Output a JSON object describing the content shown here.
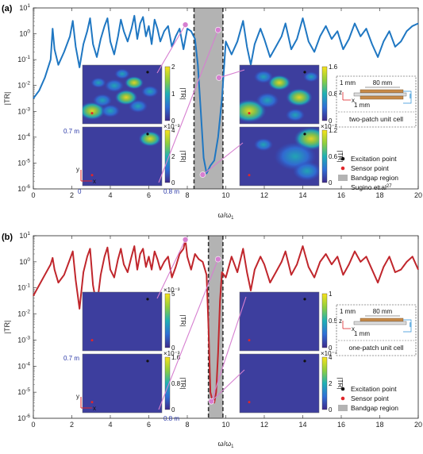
{
  "chart_data": [
    {
      "type": "line",
      "panel_label": "(a)",
      "xlabel": "ω/ω",
      "xlabel_sub": "1",
      "ylabel": "|TR|",
      "xlim": [
        0,
        20
      ],
      "ylim_log10": [
        -6,
        1
      ],
      "y_scale": "log",
      "x_ticks": [
        "0",
        "2",
        "4",
        "6",
        "8",
        "10",
        "12",
        "14",
        "16",
        "18",
        "20"
      ],
      "y_tick_exponents": [
        "1",
        "0",
        "-1",
        "-2",
        "-3",
        "-4",
        "-5",
        "-6"
      ],
      "series": [
        {
          "color": "#1f77c2",
          "x": [
            0,
            0.3,
            0.6,
            0.9,
            1.0,
            1.1,
            1.3,
            1.6,
            1.9,
            2.05,
            2.2,
            2.4,
            2.6,
            2.8,
            2.95,
            3.1,
            3.3,
            3.5,
            3.7,
            3.85,
            4.0,
            4.2,
            4.4,
            4.55,
            4.7,
            4.9,
            5.1,
            5.25,
            5.4,
            5.55,
            5.7,
            5.85,
            6.0,
            6.15,
            6.3,
            6.45,
            6.6,
            6.8,
            7.0,
            7.2,
            7.4,
            7.6,
            7.8,
            8.0,
            8.2,
            8.4,
            8.55,
            8.7,
            8.85,
            9.0,
            9.2,
            9.4,
            9.6,
            9.8,
            10.0,
            10.3,
            10.6,
            10.9,
            11.1,
            11.3,
            11.5,
            11.8,
            12.0,
            12.3,
            12.6,
            12.9,
            13.1,
            13.4,
            13.7,
            14.0,
            14.3,
            14.6,
            14.9,
            15.2,
            15.5,
            15.8,
            16.1,
            16.4,
            16.7,
            17.0,
            17.3,
            17.6,
            17.9,
            18.2,
            18.5,
            18.8,
            19.1,
            19.4,
            19.7,
            20.0
          ],
          "y_log10": [
            -2.5,
            -2.2,
            -1.7,
            -1.0,
            0.2,
            -0.6,
            -1.2,
            -0.7,
            -0.1,
            0.5,
            -0.5,
            -1.3,
            -0.4,
            0.1,
            0.6,
            -0.4,
            -0.9,
            -0.2,
            0.3,
            0.6,
            -0.3,
            -0.8,
            -0.1,
            0.55,
            0.1,
            -0.3,
            0.2,
            0.7,
            -0.2,
            0.4,
            0.65,
            -0.1,
            0.3,
            -0.4,
            0.55,
            0.2,
            -0.3,
            0.1,
            0.3,
            -0.5,
            -0.1,
            0.2,
            -0.6,
            0.2,
            0.1,
            -0.2,
            -1.2,
            -3.0,
            -4.8,
            -5.4,
            -5.1,
            -4.9,
            -4.0,
            -2.5,
            -0.3,
            -0.8,
            -0.3,
            0.5,
            -0.5,
            -1.2,
            -0.4,
            0.2,
            -0.2,
            -0.9,
            -0.5,
            -0.1,
            0.4,
            -0.6,
            -0.2,
            0.6,
            -0.3,
            -0.7,
            -0.1,
            0.3,
            -0.2,
            0.1,
            -0.6,
            -0.2,
            0.4,
            -0.1,
            0.2,
            -0.4,
            -0.9,
            -0.3,
            0.1,
            -0.5,
            -0.3,
            0.1,
            0.3,
            0.4
          ]
        }
      ],
      "bandgap": [
        8.35,
        9.85
      ],
      "dashed_lines": [
        8.35,
        9.85
      ],
      "markers": [
        {
          "x": 7.9,
          "y_log10": 0.35
        },
        {
          "x": 9.6,
          "y_log10": 0.15
        },
        {
          "x": 9.65,
          "y_log10": -1.7
        },
        {
          "x": 8.8,
          "y_log10": -5.45
        }
      ],
      "insets": {
        "left_top_cbar": [
          "2",
          "1",
          "0"
        ],
        "left_bottom_cbar": [
          "4",
          "2",
          "0"
        ],
        "left_bottom_cbar_exp": "×10⁻³",
        "right_top_cbar": [
          "1.6",
          "0.8",
          "0"
        ],
        "right_bottom_cbar": [
          "1.2",
          "0.6",
          "0"
        ],
        "right_bottom_cbar_exp": "×10⁻³",
        "cbar_label": "|TR|",
        "dim_y": "0.7 m",
        "dim_x": "0.8 m",
        "origin": "0",
        "axis_x": "x",
        "axis_y": "y"
      },
      "unit_cell": {
        "dim_top": "80 mm",
        "dim_left": "1 mm",
        "dim_bottom": "1 mm",
        "axis_x": "x",
        "axis_z": "z",
        "caption": "two-patch unit cell"
      },
      "legend": [
        {
          "label": "Excitation point",
          "kind": "dot",
          "color": "#111111"
        },
        {
          "label": "Sensor point",
          "kind": "dot",
          "color": "#e0262a"
        },
        {
          "label": "Bandgap region",
          "kind": "box",
          "color": "#b3b3b3"
        },
        {
          "label": "Sugino et.al",
          "kind": "text",
          "sup": "27"
        }
      ]
    },
    {
      "type": "line",
      "panel_label": "(b)",
      "xlabel": "ω/ω",
      "xlabel_sub": "1",
      "ylabel": "|TR|",
      "xlim": [
        0,
        20
      ],
      "ylim_log10": [
        -6,
        1
      ],
      "y_scale": "log",
      "x_ticks": [
        "0",
        "2",
        "4",
        "6",
        "8",
        "10",
        "12",
        "14",
        "16",
        "18",
        "20"
      ],
      "y_tick_exponents": [
        "1",
        "0",
        "-1",
        "-2",
        "-3",
        "-4",
        "-5",
        "-6"
      ],
      "series": [
        {
          "color": "#c0262c",
          "x": [
            0,
            0.3,
            0.6,
            0.9,
            1.0,
            1.1,
            1.3,
            1.6,
            1.9,
            2.05,
            2.2,
            2.4,
            2.6,
            2.8,
            2.95,
            3.1,
            3.3,
            3.5,
            3.7,
            3.85,
            4.0,
            4.2,
            4.4,
            4.55,
            4.7,
            4.9,
            5.1,
            5.25,
            5.4,
            5.55,
            5.7,
            5.85,
            6.0,
            6.15,
            6.3,
            6.45,
            6.6,
            6.8,
            7.0,
            7.2,
            7.4,
            7.6,
            7.8,
            7.9,
            8.0,
            8.2,
            8.4,
            8.6,
            8.8,
            9.0,
            9.1,
            9.2,
            9.3,
            9.4,
            9.5,
            9.6,
            9.7,
            9.8,
            10.0,
            10.3,
            10.6,
            10.9,
            11.1,
            11.3,
            11.5,
            11.8,
            12.0,
            12.3,
            12.6,
            12.9,
            13.1,
            13.4,
            13.7,
            14.0,
            14.3,
            14.6,
            14.9,
            15.2,
            15.5,
            15.8,
            16.1,
            16.4,
            16.7,
            17.0,
            17.3,
            17.6,
            17.9,
            18.2,
            18.5,
            18.8,
            19.1,
            19.4,
            19.7,
            20.0
          ],
          "y_log10": [
            -1.3,
            -0.9,
            -0.5,
            -0.1,
            0.15,
            -0.3,
            -0.8,
            -0.5,
            0.1,
            0.4,
            -0.7,
            -1.8,
            -0.4,
            0.2,
            0.5,
            -0.9,
            -1.7,
            -0.5,
            0.2,
            0.55,
            -0.3,
            -0.6,
            0.1,
            0.5,
            -0.1,
            -0.4,
            0.2,
            0.6,
            -0.3,
            0.3,
            0.5,
            -0.2,
            0.2,
            -0.3,
            0.4,
            0.1,
            -0.3,
            0.0,
            0.2,
            -0.6,
            -0.2,
            0.3,
            0.5,
            0.85,
            0.2,
            -0.3,
            0.3,
            0.1,
            0.0,
            -0.5,
            -2.5,
            -5.0,
            -5.3,
            -5.4,
            -5.0,
            -3.5,
            -1.5,
            -0.4,
            -0.6,
            0.2,
            -0.4,
            0.5,
            -0.4,
            -1.1,
            -0.3,
            0.2,
            -0.1,
            -0.8,
            -0.4,
            0.0,
            0.4,
            -0.5,
            -0.1,
            0.6,
            -0.2,
            -0.6,
            0.0,
            0.3,
            -0.1,
            0.2,
            -0.5,
            -0.1,
            0.4,
            0.0,
            0.2,
            -0.3,
            -0.8,
            -0.2,
            0.2,
            -0.4,
            -0.3,
            0.0,
            0.2,
            -0.3
          ]
        }
      ],
      "bandgap": [
        9.1,
        9.85
      ],
      "dashed_lines": [
        9.1,
        9.85
      ],
      "markers": [
        {
          "x": 7.9,
          "y_log10": 0.85
        },
        {
          "x": 9.6,
          "y_log10": 0.1
        },
        {
          "x": 9.25,
          "y_log10": -5.35
        }
      ],
      "insets": {
        "left_top_cbar": [
          "5",
          "0"
        ],
        "left_top_cbar_exp": "×10⁻³",
        "left_bottom_cbar": [
          "1.6",
          "0.8",
          "0"
        ],
        "left_bottom_cbar_exp": "×10⁻³",
        "right_top_cbar": [
          "1",
          "0.5",
          "0"
        ],
        "right_bottom_cbar": [
          "4",
          "2",
          "0"
        ],
        "right_bottom_cbar_exp": "×10⁻⁴",
        "cbar_label": "|TR|",
        "dim_y": "0.7 m",
        "dim_x": "0.8 m",
        "axis_x": "x",
        "axis_y": "y"
      },
      "unit_cell": {
        "dim_top": "80 mm",
        "dim_left": "1 mm",
        "dim_bottom": "1 mm",
        "axis_x": "x",
        "axis_z": "z",
        "caption": "one-patch unit cell"
      },
      "legend": [
        {
          "label": "Excitation point",
          "kind": "dot",
          "color": "#111111"
        },
        {
          "label": "Sensor point",
          "kind": "dot",
          "color": "#e0262a"
        },
        {
          "label": "Bandgap region",
          "kind": "box",
          "color": "#b3b3b3"
        }
      ]
    }
  ]
}
